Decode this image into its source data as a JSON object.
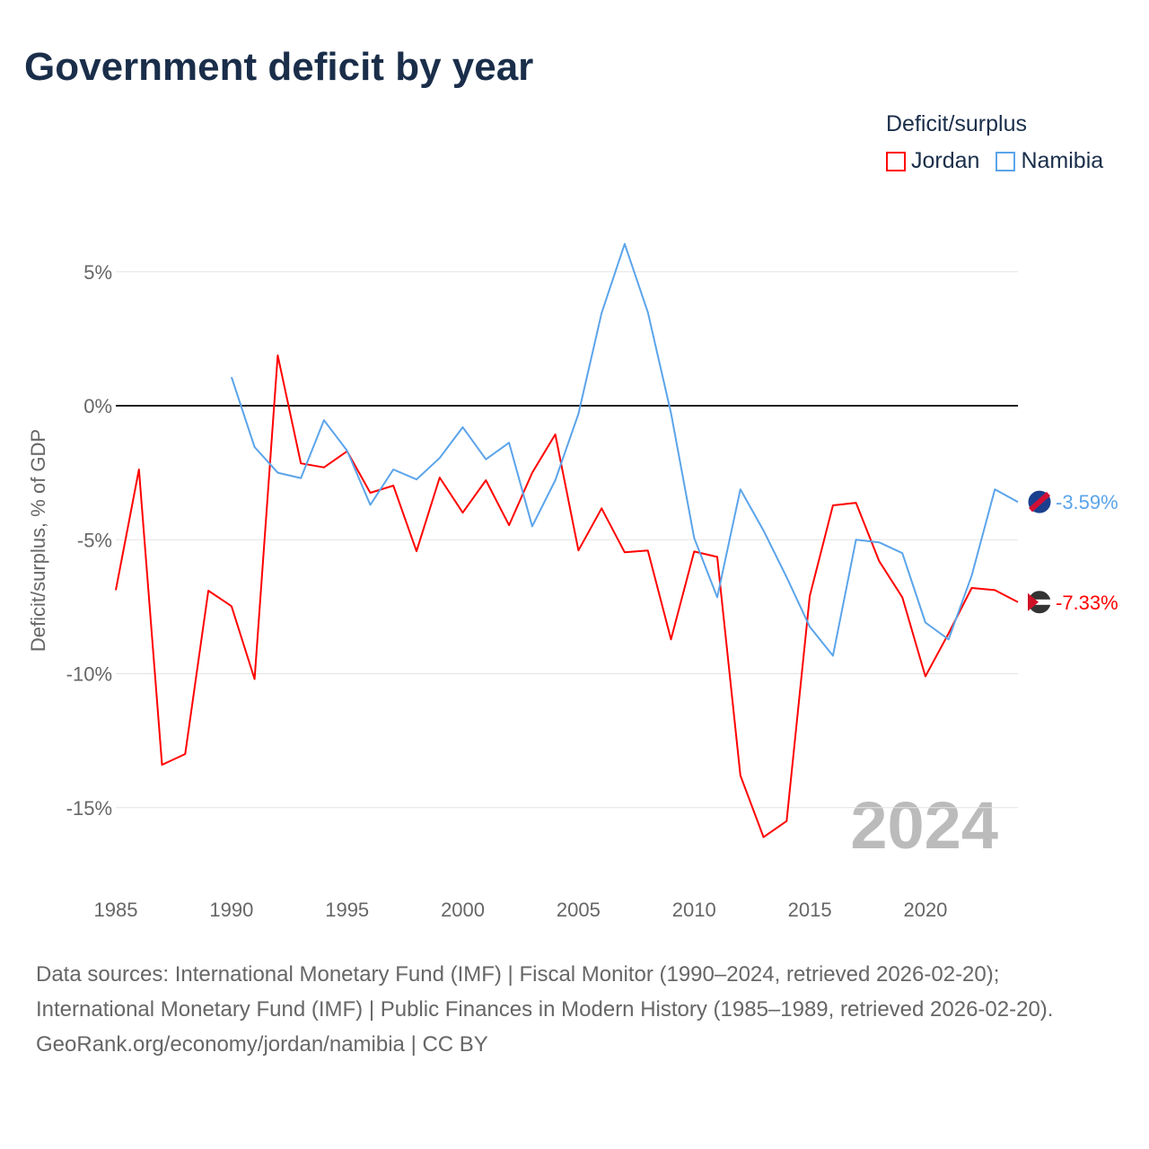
{
  "chart_data": {
    "type": "line",
    "title": "Government deficit by year",
    "ylabel": "Deficit/surplus, % of GDP",
    "xlabel": "",
    "xlim": [
      1985,
      2024
    ],
    "ylim": [
      -17,
      6.5
    ],
    "x_ticks": [
      1985,
      1990,
      1995,
      2000,
      2005,
      2010,
      2015,
      2020
    ],
    "y_ticks": [
      5,
      0,
      -5,
      -10,
      -15
    ],
    "y_tick_labels": [
      "5%",
      "0%",
      "-5%",
      "-10%",
      "-15%"
    ],
    "x_tick_labels": [
      "1985",
      "1990",
      "1995",
      "2000",
      "2005",
      "2010",
      "2015",
      "2020"
    ],
    "grid": true,
    "legend_title": "Deficit/surplus",
    "legend_placement": "top-right",
    "year_watermark": "2024",
    "series": [
      {
        "name": "Jordan",
        "color": "#ff0000",
        "end_label": "-7.33%",
        "x": [
          1985,
          1986,
          1987,
          1988,
          1989,
          1990,
          1991,
          1992,
          1993,
          1994,
          1995,
          1996,
          1997,
          1998,
          1999,
          2000,
          2001,
          2002,
          2003,
          2004,
          2005,
          2006,
          2007,
          2008,
          2009,
          2010,
          2011,
          2012,
          2013,
          2014,
          2015,
          2016,
          2017,
          2018,
          2019,
          2020,
          2021,
          2022,
          2023,
          2024
        ],
        "values": [
          -6.88,
          -2.38,
          -13.4,
          -13.0,
          -6.9,
          -7.48,
          -10.2,
          1.88,
          -2.15,
          -2.3,
          -1.7,
          -3.25,
          -2.98,
          -5.43,
          -2.68,
          -3.99,
          -2.78,
          -4.46,
          -2.5,
          -1.07,
          -5.4,
          -3.83,
          -5.47,
          -5.4,
          -8.72,
          -5.44,
          -5.64,
          -13.8,
          -16.1,
          -15.5,
          -7.1,
          -3.72,
          -3.62,
          -5.8,
          -7.15,
          -10.1,
          -8.5,
          -6.8,
          -6.88,
          -7.33
        ]
      },
      {
        "name": "Namibia",
        "color": "#5ba4ea",
        "end_label": "-3.59%",
        "x": [
          1990,
          1991,
          1992,
          1993,
          1994,
          1995,
          1996,
          1997,
          1998,
          1999,
          2000,
          2001,
          2002,
          2003,
          2004,
          2005,
          2006,
          2007,
          2008,
          2009,
          2010,
          2011,
          2012,
          2013,
          2014,
          2015,
          2016,
          2017,
          2018,
          2019,
          2020,
          2021,
          2022,
          2023,
          2024
        ],
        "values": [
          1.07,
          -1.54,
          -2.5,
          -2.7,
          -0.54,
          -1.68,
          -3.7,
          -2.38,
          -2.75,
          -1.95,
          -0.8,
          -2.0,
          -1.38,
          -4.5,
          -2.78,
          -0.3,
          3.46,
          6.04,
          3.49,
          -0.27,
          -4.93,
          -7.15,
          -3.12,
          -4.66,
          -6.4,
          -8.25,
          -9.33,
          -5.0,
          -5.1,
          -5.5,
          -8.09,
          -8.72,
          -6.34,
          -3.12,
          -3.59
        ]
      }
    ]
  },
  "footer": {
    "sources": "Data sources: International Monetary Fund (IMF) | Fiscal Monitor (1990–2024, retrieved 2026-02-20); International Monetary Fund (IMF) | Public Finances in Modern History (1985–1989, retrieved 2026-02-20).",
    "credit": "GeoRank.org/economy/jordan/namibia | CC BY"
  }
}
